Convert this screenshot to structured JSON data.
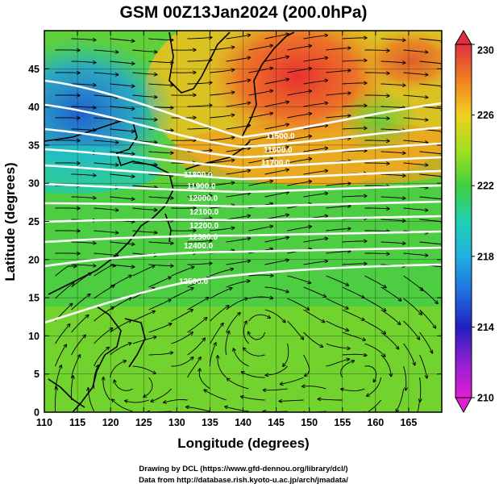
{
  "title": "GSM 00Z13Jan2024 (200.0hPa)",
  "x_axis": {
    "label": "Longitude (degrees)",
    "range": [
      110,
      170
    ],
    "ticks": [
      "110",
      "115",
      "120",
      "125",
      "130",
      "135",
      "140",
      "145",
      "150",
      "155",
      "160",
      "165"
    ]
  },
  "y_axis": {
    "label": "Latitude  (degrees)",
    "range": [
      0,
      50
    ],
    "ticks": [
      "0",
      "5",
      "10",
      "15",
      "20",
      "25",
      "30",
      "35",
      "40",
      "45"
    ]
  },
  "colorbar": {
    "range": [
      210,
      230
    ],
    "labels": [
      "210",
      "214",
      "218",
      "222",
      "226",
      "230"
    ],
    "colors": [
      "#d020c0",
      "#2020c0",
      "#20a0e0",
      "#20d0a0",
      "#40d020",
      "#a0e020",
      "#f0c020",
      "#f07020",
      "#e03030"
    ]
  },
  "contours": {
    "labels": [
      "11500.0",
      "11600.0",
      "11700.0",
      "11800.0",
      "11900.0",
      "12000.0",
      "12100.0",
      "12200.0",
      "12300.0",
      "12400.0",
      "12500.0"
    ]
  },
  "credits": {
    "line1": "Drawing by DCL (https://www.gfd-dennou.org/library/dcl/)",
    "line2": "Data from http://database.rish.kyoto-u.ac.jp/arch/jmadata/"
  }
}
